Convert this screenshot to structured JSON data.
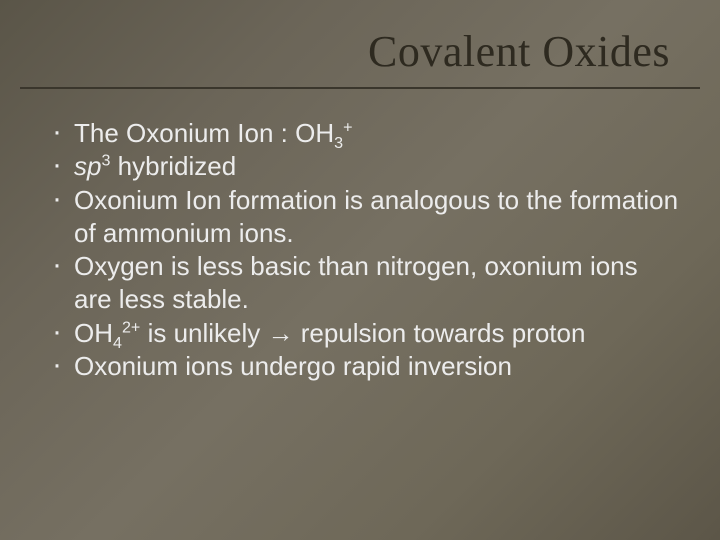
{
  "slide": {
    "background_gradient": [
      "#5a5548",
      "#6b6558",
      "#767062",
      "#6e6858",
      "#5c5648"
    ],
    "title": {
      "text": "Covalent Oxides",
      "color": "#2e2a20",
      "font_family": "Georgia serif",
      "font_size_pt": 33,
      "align": "right"
    },
    "divider_color": "#3a362c",
    "body": {
      "text_color": "#ececec",
      "font_family": "Arial sans-serif",
      "font_size_pt": 20,
      "bullets": [
        {
          "pre": "The Oxonium Ion  : OH",
          "sub1": "3",
          "sup1": "+",
          "post": ""
        },
        {
          "pre_italic": "sp",
          "sup1": "3",
          "post": " hybridized"
        },
        {
          "pre": "Oxonium Ion formation is analogous to the formation of ammonium ions."
        },
        {
          "pre": "Oxygen is less basic than nitrogen, oxonium ions are less stable."
        },
        {
          "pre": "OH",
          "sub1": "4",
          "sup1": "2+",
          "mid": " is unlikely ",
          "arrow": "→",
          "post": " repulsion towards proton"
        },
        {
          "pre": "Oxonium ions undergo rapid inversion"
        }
      ]
    }
  }
}
